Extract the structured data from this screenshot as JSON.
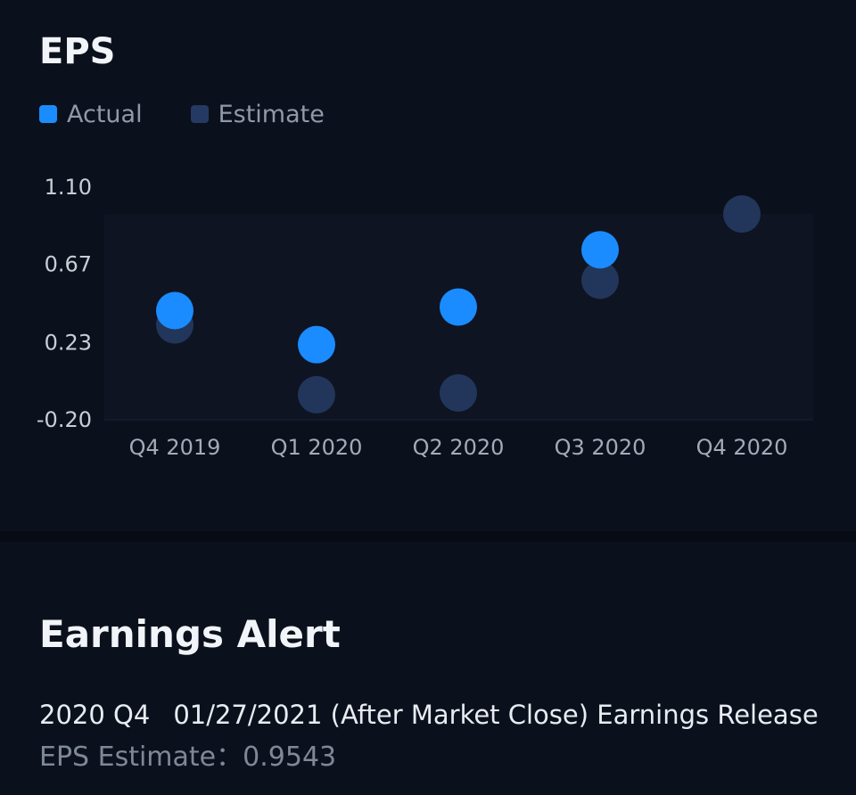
{
  "eps_section": {
    "title": "EPS",
    "legend": [
      {
        "label": "Actual",
        "color": "#1a8cff"
      },
      {
        "label": "Estimate",
        "color": "#253a62"
      }
    ]
  },
  "chart_data": {
    "type": "scatter",
    "title": "EPS",
    "categories": [
      "Q4 2019",
      "Q1 2020",
      "Q2 2020",
      "Q3 2020",
      "Q4 2020"
    ],
    "y_ticks": [
      "1.10",
      "0.67",
      "0.23",
      "-0.20"
    ],
    "ylim": [
      -0.2,
      1.1
    ],
    "grid": false,
    "legend_position": "top-left",
    "series": [
      {
        "name": "Actual",
        "color": "#1a8cff",
        "values": [
          0.41,
          0.22,
          0.43,
          0.75,
          null
        ]
      },
      {
        "name": "Estimate",
        "color": "#253a62",
        "values": [
          0.33,
          -0.06,
          -0.05,
          0.58,
          0.95
        ]
      }
    ]
  },
  "alert": {
    "title": "Earnings Alert",
    "quarter": "2020 Q4",
    "release_text": "01/27/2021 (After Market Close) Earnings Release",
    "estimate_label": "EPS Estimate",
    "estimate_separator": "：",
    "estimate_value": "0.9543"
  }
}
